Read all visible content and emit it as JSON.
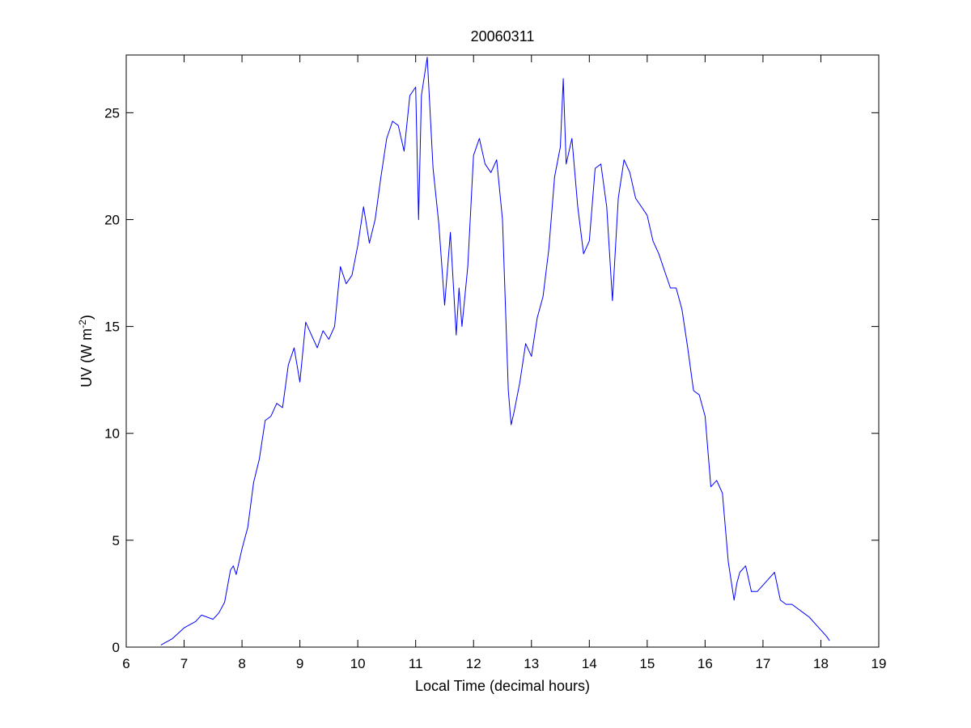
{
  "chart_data": {
    "type": "line",
    "title": "20060311",
    "xlabel": "Local Time (decimal hours)",
    "ylabel": {
      "prefix": "UV (W m",
      "superscript": "-2",
      "suffix": ")"
    },
    "xlim": [
      6,
      19
    ],
    "ylim": [
      0,
      27.7
    ],
    "xticks": [
      "6",
      "7",
      "8",
      "9",
      "10",
      "11",
      "12",
      "13",
      "14",
      "15",
      "16",
      "17",
      "18",
      "19"
    ],
    "yticks": [
      "0",
      "5",
      "10",
      "15",
      "20",
      "25"
    ],
    "grid": false,
    "legend": "none",
    "line_color": "#0000ff",
    "x": [
      6.6,
      6.8,
      7.0,
      7.2,
      7.3,
      7.5,
      7.6,
      7.7,
      7.8,
      7.85,
      7.9,
      8.0,
      8.1,
      8.2,
      8.3,
      8.4,
      8.5,
      8.6,
      8.7,
      8.8,
      8.9,
      9.0,
      9.1,
      9.2,
      9.3,
      9.4,
      9.5,
      9.6,
      9.7,
      9.8,
      9.9,
      10.0,
      10.1,
      10.2,
      10.3,
      10.4,
      10.5,
      10.6,
      10.7,
      10.8,
      10.9,
      11.0,
      11.05,
      11.1,
      11.2,
      11.3,
      11.4,
      11.5,
      11.6,
      11.7,
      11.75,
      11.8,
      11.9,
      12.0,
      12.1,
      12.2,
      12.3,
      12.4,
      12.5,
      12.6,
      12.65,
      12.7,
      12.8,
      12.9,
      13.0,
      13.1,
      13.2,
      13.3,
      13.4,
      13.5,
      13.55,
      13.6,
      13.7,
      13.8,
      13.9,
      14.0,
      14.1,
      14.2,
      14.3,
      14.4,
      14.5,
      14.6,
      14.7,
      14.8,
      14.9,
      15.0,
      15.1,
      15.2,
      15.3,
      15.4,
      15.5,
      15.6,
      15.7,
      15.8,
      15.9,
      16.0,
      16.1,
      16.2,
      16.3,
      16.4,
      16.5,
      16.55,
      16.6,
      16.7,
      16.8,
      16.9,
      17.0,
      17.1,
      17.2,
      17.3,
      17.4,
      17.5,
      17.6,
      17.7,
      17.8,
      17.9,
      18.0,
      18.1,
      18.15
    ],
    "y": [
      0.1,
      0.4,
      0.9,
      1.2,
      1.5,
      1.3,
      1.6,
      2.1,
      3.6,
      3.8,
      3.4,
      4.6,
      5.6,
      7.7,
      8.8,
      10.6,
      10.8,
      11.4,
      11.2,
      13.2,
      14.0,
      12.4,
      15.2,
      14.6,
      14.0,
      14.8,
      14.4,
      15.0,
      17.8,
      17.0,
      17.4,
      18.8,
      20.6,
      18.9,
      20.0,
      22.0,
      23.8,
      24.6,
      24.4,
      23.2,
      25.8,
      26.2,
      20.0,
      25.8,
      27.6,
      22.4,
      19.8,
      16.0,
      19.4,
      14.6,
      16.8,
      15.0,
      17.8,
      23.0,
      23.8,
      22.6,
      22.2,
      22.8,
      20.0,
      12.0,
      10.4,
      11.0,
      12.4,
      14.2,
      13.6,
      15.4,
      16.4,
      18.6,
      22.0,
      23.4,
      26.6,
      22.6,
      23.8,
      20.6,
      18.4,
      19.0,
      22.4,
      22.6,
      20.6,
      16.2,
      21.0,
      22.8,
      22.2,
      21.0,
      20.6,
      20.2,
      19.0,
      18.4,
      17.6,
      16.8,
      16.8,
      15.8,
      14.0,
      12.0,
      11.8,
      10.8,
      7.5,
      7.8,
      7.2,
      4.0,
      2.2,
      3.0,
      3.5,
      3.8,
      2.6,
      2.6,
      2.9,
      3.2,
      3.5,
      2.2,
      2.0,
      2.0,
      1.8,
      1.6,
      1.4,
      1.1,
      0.8,
      0.5,
      0.3
    ]
  }
}
